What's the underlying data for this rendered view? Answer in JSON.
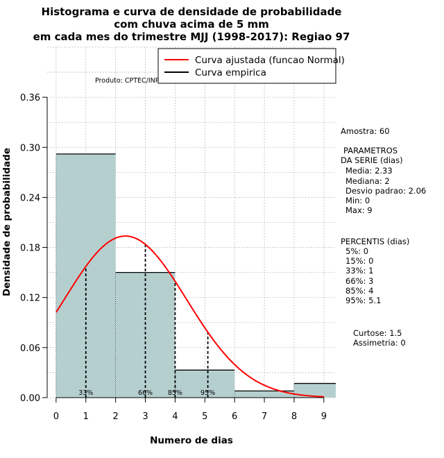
{
  "chart_data": {
    "type": "bar",
    "title": [
      "Histograma e curva de densidade de probabilidade",
      "com chuva acima de 5 mm",
      "em cada mes do trimestre MJJ (1998-2017): Regiao 97"
    ],
    "xlabel": "Numero de dias",
    "ylabel": "Densidade de probabilidade",
    "xlim": [
      -0.3,
      9.4
    ],
    "ylim": [
      0,
      0.42
    ],
    "x_ticks": [
      "0",
      "1",
      "2",
      "3",
      "4",
      "5",
      "6",
      "7",
      "8",
      "9"
    ],
    "y_ticks": [
      "0.00",
      "0.06",
      "0.12",
      "0.18",
      "0.24",
      "0.30",
      "0.36"
    ],
    "bins": [
      {
        "from": 0,
        "to": 2,
        "density": 0.292
      },
      {
        "from": 2,
        "to": 4,
        "density": 0.15
      },
      {
        "from": 4,
        "to": 6,
        "density": 0.033
      },
      {
        "from": 6,
        "to": 8,
        "density": 0.008
      },
      {
        "from": 8,
        "to": 10,
        "density": 0.017
      }
    ],
    "normal_curve": {
      "mean": 2.33,
      "sd": 2.06,
      "x_range": [
        0,
        9
      ]
    },
    "empirical_curve": [
      [
        0,
        0.292
      ],
      [
        2,
        0.292
      ],
      [
        2,
        0.15
      ],
      [
        4,
        0.15
      ],
      [
        4,
        0.033
      ],
      [
        6,
        0.033
      ],
      [
        6,
        0.008
      ],
      [
        8,
        0.008
      ],
      [
        8,
        0.017
      ],
      [
        10,
        0.017
      ]
    ],
    "percentile_lines": [
      {
        "label": "33%",
        "x": 1
      },
      {
        "label": "66%",
        "x": 3
      },
      {
        "label": "85%",
        "x": 4
      },
      {
        "label": "95%",
        "x": 5.1
      }
    ],
    "legend": {
      "position": "top-right",
      "entries": [
        {
          "label": "Curva ajustada (funcao Normal)",
          "color": "#ff0000"
        },
        {
          "label": "Curva empirica",
          "color": "#000000"
        }
      ]
    },
    "product_label": "Produto: CPTEC/INPE",
    "colors": {
      "bar_fill": "#b5cfcf",
      "curve": "#ff0000",
      "grid": "#bebebe"
    },
    "grid": true
  },
  "stats": {
    "amostra": "Amostra: 60",
    "parametros_title": [
      "PARAMETROS",
      "DA SERIE (dias)"
    ],
    "parametros": [
      "Media: 2.33",
      "Mediana: 2",
      "Desvio padrao: 2.06",
      "Min: 0",
      "Max: 9"
    ],
    "percentis_title": "PERCENTIS (dias)",
    "percentis": [
      "5%: 0",
      "15%: 0",
      "33%: 1",
      "66%: 3",
      "85%: 4",
      "95%: 5.1"
    ],
    "curtose": "Curtose: 1.5",
    "assimetria": "Assimetria: 0"
  }
}
